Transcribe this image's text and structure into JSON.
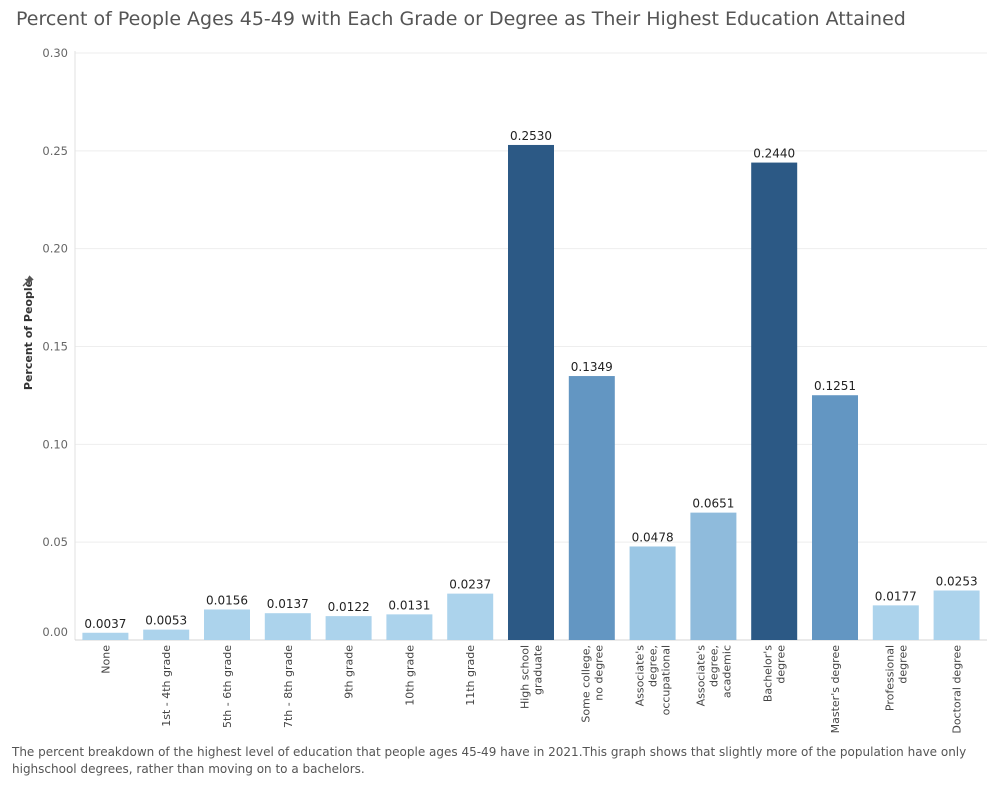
{
  "title": "Percent of People Ages 45-49 with Each Grade or Degree as Their Highest Education Attained",
  "caption": "The percent breakdown of the highest level of education that people ages 45-49 have  in 2021.This graph shows that slightly more of the population have only highschool degrees, rather than moving on to a bachelors.",
  "chart_data": {
    "type": "bar",
    "title": "Percent of People Ages 45-49 with Each Grade or Degree as Their Highest Education Attained",
    "ylabel": "Percent of People",
    "xlabel": "",
    "ylim": [
      0,
      0.3
    ],
    "yticks": [
      "0.00",
      "0.05",
      "0.10",
      "0.15",
      "0.20",
      "0.25",
      "0.30"
    ],
    "grid": true,
    "categories": [
      [
        "None"
      ],
      [
        "1st - 4th grade"
      ],
      [
        "5th - 6th grade"
      ],
      [
        "7th - 8th grade"
      ],
      [
        "9th grade"
      ],
      [
        "10th grade"
      ],
      [
        "11th grade"
      ],
      [
        "High school",
        "graduate"
      ],
      [
        "Some college,",
        "no degree"
      ],
      [
        "Associate's",
        "degree,",
        "occupational"
      ],
      [
        "Associate's",
        "degree,",
        "academic"
      ],
      [
        "Bachelor's",
        "degree"
      ],
      [
        "Master's degree"
      ],
      [
        "Professional",
        "degree"
      ],
      [
        "Doctoral degree"
      ]
    ],
    "values": [
      0.0037,
      0.0053,
      0.0156,
      0.0137,
      0.0122,
      0.0131,
      0.0237,
      0.253,
      0.1349,
      0.0478,
      0.0651,
      0.244,
      0.1251,
      0.0177,
      0.0253
    ],
    "value_labels": [
      "0.0037",
      "0.0053",
      "0.0156",
      "0.0137",
      "0.0122",
      "0.0131",
      "0.0237",
      "0.2530",
      "0.1349",
      "0.0478",
      "0.0651",
      "0.2440",
      "0.1251",
      "0.0177",
      "0.0253"
    ],
    "colors": [
      "#acd3ec",
      "#acd3ec",
      "#acd3ec",
      "#acd3ec",
      "#acd3ec",
      "#acd3ec",
      "#acd3ec",
      "#2c5985",
      "#6396c2",
      "#9ac6e4",
      "#8fbbdc",
      "#2c5985",
      "#6396c2",
      "#acd3ec",
      "#acd3ec"
    ],
    "axis_icon": "pin-icon"
  }
}
